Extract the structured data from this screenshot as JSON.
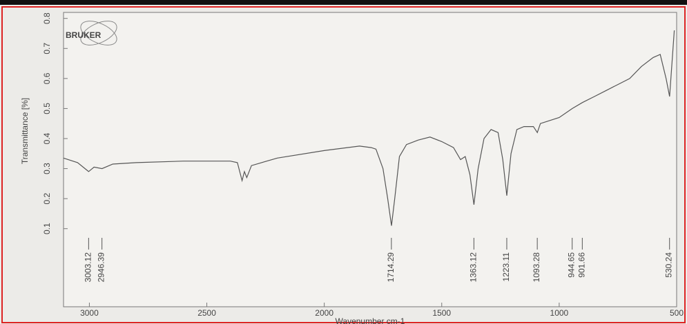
{
  "chart_data": {
    "type": "line",
    "logo": "BRUKER",
    "y_label": "Transmittance [%]",
    "x_label": "Wavenumber cm-1",
    "color": "#555555",
    "xlim": [
      3110,
      500
    ],
    "ylim": [
      -0.16,
      0.82
    ],
    "xticks": [
      3000,
      2500,
      2000,
      1500,
      1000,
      500
    ],
    "yticks": [
      0.1,
      0.2,
      0.3,
      0.4,
      0.5,
      0.6,
      0.7,
      0.8
    ],
    "peaks": [
      3003.12,
      2946.39,
      1714.29,
      1363.12,
      1223.11,
      1093.28,
      944.65,
      901.66,
      530.24
    ],
    "x": [
      3110,
      3050,
      3003,
      2980,
      2946,
      2900,
      2800,
      2600,
      2400,
      2370,
      2350,
      2340,
      2330,
      2310,
      2200,
      2000,
      1850,
      1800,
      1780,
      1750,
      1730,
      1714,
      1700,
      1680,
      1650,
      1600,
      1550,
      1500,
      1450,
      1420,
      1400,
      1380,
      1363,
      1345,
      1320,
      1290,
      1260,
      1240,
      1223,
      1205,
      1180,
      1150,
      1110,
      1093,
      1080,
      1000,
      944,
      901,
      850,
      800,
      750,
      700,
      650,
      600,
      570,
      545,
      530,
      520,
      510
    ],
    "values": [
      0.335,
      0.32,
      0.29,
      0.305,
      0.3,
      0.315,
      0.32,
      0.325,
      0.325,
      0.32,
      0.26,
      0.29,
      0.27,
      0.31,
      0.335,
      0.36,
      0.375,
      0.37,
      0.365,
      0.3,
      0.2,
      0.11,
      0.2,
      0.34,
      0.38,
      0.395,
      0.405,
      0.39,
      0.37,
      0.33,
      0.34,
      0.28,
      0.18,
      0.3,
      0.4,
      0.43,
      0.42,
      0.33,
      0.21,
      0.35,
      0.43,
      0.44,
      0.44,
      0.42,
      0.45,
      0.47,
      0.5,
      0.52,
      0.54,
      0.56,
      0.58,
      0.6,
      0.64,
      0.67,
      0.68,
      0.6,
      0.54,
      0.65,
      0.76
    ]
  }
}
